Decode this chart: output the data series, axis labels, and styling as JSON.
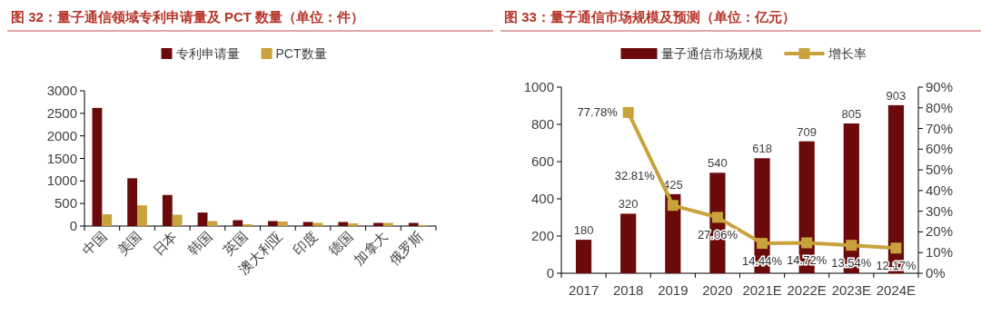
{
  "chart_data": [
    {
      "type": "bar",
      "title": "图 32：量子通信领域专利申请量及 PCT 数量（单位：件）",
      "categories": [
        "中国",
        "美国",
        "日本",
        "韩国",
        "英国",
        "澳大利亚",
        "印度",
        "德国",
        "加拿大",
        "俄罗斯"
      ],
      "series": [
        {
          "name": "专利申请量",
          "color": "#6b0a0a",
          "values": [
            2620,
            1060,
            690,
            300,
            130,
            110,
            90,
            90,
            70,
            70
          ]
        },
        {
          "name": "PCT数量",
          "color": "#c8a23c",
          "values": [
            260,
            460,
            250,
            110,
            40,
            100,
            70,
            60,
            70,
            20
          ]
        }
      ],
      "ylim": [
        0,
        3000
      ],
      "yticks": [
        0,
        500,
        1000,
        1500,
        2000,
        2500,
        3000
      ],
      "grid": false,
      "legend": "top"
    },
    {
      "type": "bar",
      "title": "图 33：量子通信市场规模及预测（单位：亿元）",
      "categories": [
        "2017",
        "2018",
        "2019",
        "2020",
        "2021E",
        "2022E",
        "2023E",
        "2024E"
      ],
      "series": [
        {
          "name": "量子通信市场规模",
          "color": "#6b0a0a",
          "values": [
            180,
            320,
            425,
            540,
            618,
            709,
            805,
            903
          ],
          "value_labels": [
            "180",
            "320",
            "425",
            "540",
            "618",
            "709",
            "805",
            "903"
          ]
        },
        {
          "name": "增长率",
          "type": "line",
          "axis": "y2",
          "color": "#c8a23c",
          "marker": "square",
          "values": [
            null,
            77.78,
            32.81,
            27.06,
            14.44,
            14.72,
            13.54,
            12.17
          ],
          "value_labels": [
            null,
            "77.78%",
            "32.81%",
            "27.06%",
            "14.44%",
            "14.72%",
            "13.54%",
            "12.17%"
          ]
        }
      ],
      "ylim": [
        0,
        1000
      ],
      "yticks": [
        0,
        200,
        400,
        600,
        800,
        1000
      ],
      "y2lim": [
        0,
        90
      ],
      "y2ticks": [
        {
          "value": 0,
          "label": "0%"
        },
        {
          "value": 10,
          "label": "10%"
        },
        {
          "value": 20,
          "label": "20%"
        },
        {
          "value": 30,
          "label": "30%"
        },
        {
          "value": 40,
          "label": "40%"
        },
        {
          "value": 50,
          "label": "50%"
        },
        {
          "value": 60,
          "label": "60%"
        },
        {
          "value": 70,
          "label": "70%"
        },
        {
          "value": 80,
          "label": "80%"
        },
        {
          "value": 90,
          "label": "90%"
        }
      ],
      "grid": false,
      "legend": "top"
    }
  ]
}
